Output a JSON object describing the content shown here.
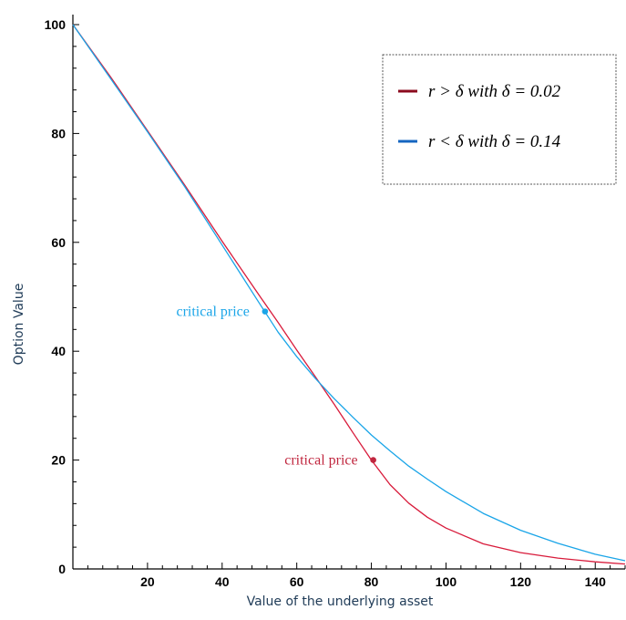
{
  "chart_data": {
    "type": "line",
    "xlabel": "Value of the underlying asset",
    "ylabel": "Option Value",
    "xlim": [
      0,
      148
    ],
    "ylim": [
      0,
      100
    ],
    "x_ticks": [
      20,
      40,
      60,
      80,
      100,
      120,
      140
    ],
    "y_ticks": [
      0,
      20,
      40,
      60,
      80,
      100
    ],
    "grid": false,
    "legend_position": "top-right",
    "series": [
      {
        "name": "r > δ with δ = 0.02",
        "color": "#d81b3b",
        "legend_color": "#8b0a1e",
        "x": [
          0,
          10,
          20,
          30,
          40,
          50,
          55,
          60,
          65,
          70,
          75,
          80,
          85,
          90,
          95,
          100,
          110,
          120,
          130,
          140,
          148
        ],
        "y": [
          100,
          90.5,
          80.5,
          70.5,
          60.2,
          50.2,
          45.3,
          40.2,
          35.3,
          30.3,
          25.1,
          20.0,
          15.5,
          12.1,
          9.5,
          7.5,
          4.6,
          3.0,
          2.0,
          1.3,
          0.9
        ]
      },
      {
        "name": "r < δ with δ = 0.14",
        "color": "#1aa5e8",
        "legend_color": "#1565c0",
        "x": [
          0,
          10,
          20,
          30,
          40,
          50,
          55,
          60,
          65,
          70,
          75,
          80,
          85,
          90,
          95,
          100,
          110,
          120,
          130,
          140,
          148
        ],
        "y": [
          100,
          90.2,
          80.3,
          70.2,
          59.5,
          48.8,
          43.5,
          39.0,
          35.0,
          31.3,
          27.9,
          24.6,
          21.7,
          18.9,
          16.5,
          14.2,
          10.2,
          7.1,
          4.7,
          2.7,
          1.5
        ]
      }
    ],
    "annotations": [
      {
        "text": "critical price",
        "x": 51.5,
        "y": 47.3,
        "color": "#1aa5e8",
        "label_side": "left"
      },
      {
        "text": "critical price",
        "x": 80.5,
        "y": 20.0,
        "color": "#c0263e",
        "label_side": "left"
      }
    ]
  }
}
